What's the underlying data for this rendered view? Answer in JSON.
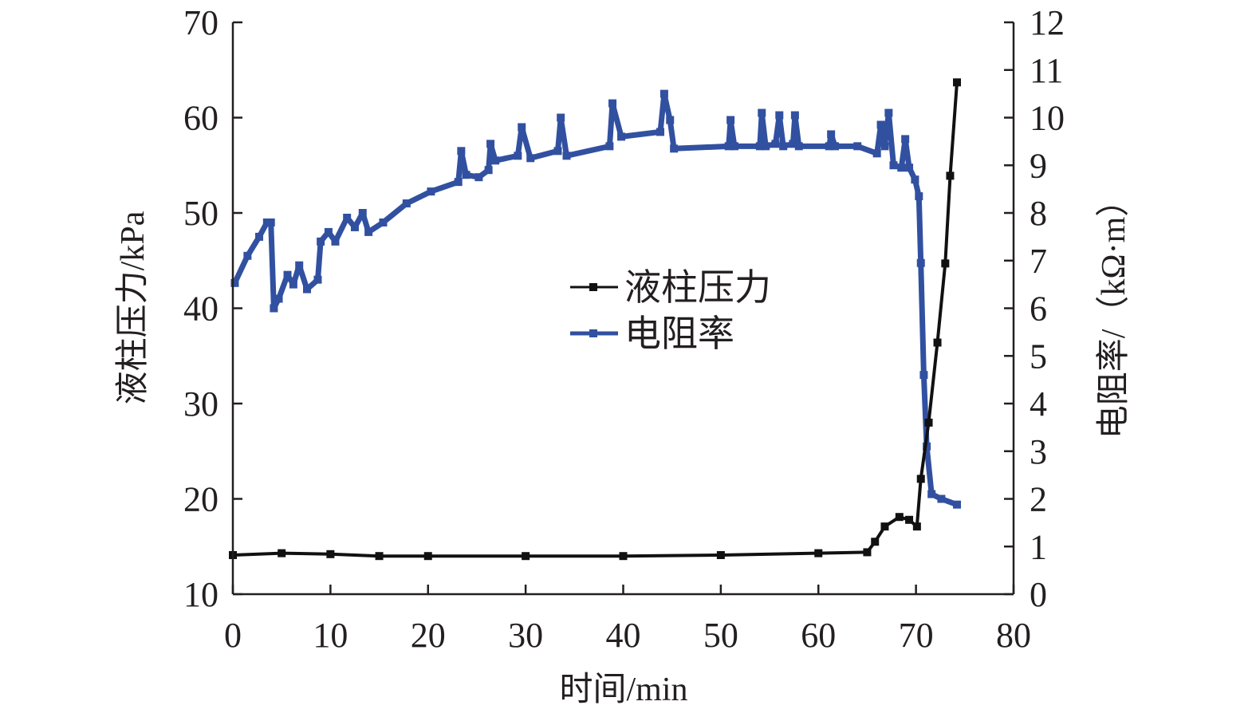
{
  "chart_data": {
    "type": "line",
    "title": "",
    "xlabel": "时间/min",
    "ylabel_left": "液柱压力/kPa",
    "ylabel_right": "电阻率/（kΩ·m）",
    "xlim": [
      0,
      80
    ],
    "ylim_left": [
      10,
      70
    ],
    "ylim_right": [
      0,
      12
    ],
    "x_ticks": [
      "0",
      "10",
      "20",
      "30",
      "40",
      "50",
      "60",
      "70",
      "80"
    ],
    "y_left_ticks": [
      "10",
      "20",
      "30",
      "40",
      "50",
      "60",
      "70"
    ],
    "y_right_ticks": [
      "0",
      "1",
      "2",
      "3",
      "4",
      "5",
      "6",
      "7",
      "8",
      "9",
      "10",
      "11",
      "12"
    ],
    "grid": false,
    "legend_position": "center",
    "colors": {
      "pressure": "#111111",
      "resistivity": "#3150a0",
      "axis": "#231f20"
    },
    "series": [
      {
        "name": "液柱压力",
        "axis": "left",
        "x": [
          0,
          5,
          10,
          15,
          20,
          30,
          40,
          50,
          60,
          65,
          65.8,
          66.8,
          68.3,
          69.3,
          70.1,
          70.5,
          71.3,
          72.2,
          73.0,
          73.5,
          74.2
        ],
        "y": [
          14.1,
          14.3,
          14.2,
          14.0,
          14.0,
          14.0,
          14.0,
          14.1,
          14.3,
          14.4,
          15.5,
          17.1,
          18.1,
          17.8,
          17.1,
          22.1,
          28.0,
          36.4,
          44.7,
          53.9,
          63.7
        ]
      },
      {
        "name": "电阻率",
        "axis": "right",
        "x": [
          0.2,
          1.5,
          2.7,
          3.5,
          3.9,
          4.2,
          4.7,
          5.6,
          6.2,
          6.8,
          7.6,
          8.7,
          9.0,
          9.8,
          10.5,
          11.7,
          12.5,
          13.3,
          13.9,
          15.4,
          17.8,
          20.3,
          23.1,
          23.4,
          23.9,
          25.2,
          26.2,
          26.4,
          26.9,
          29.2,
          29.6,
          30.5,
          33.3,
          33.6,
          34.2,
          38.6,
          38.9,
          39.8,
          43.8,
          44.2,
          44.8,
          45.2,
          50.8,
          51.0,
          51.4,
          54.0,
          54.2,
          54.6,
          55.6,
          56.0,
          56.4,
          57.4,
          57.6,
          58.0,
          61.1,
          61.3,
          61.7,
          64.0,
          66.0,
          66.4,
          66.8,
          67.2,
          67.7,
          68.5,
          68.9,
          69.3,
          69.9,
          70.3,
          70.5,
          70.8,
          71.1,
          71.6,
          72.6,
          74.2
        ],
        "y": [
          6.53,
          7.1,
          7.5,
          7.8,
          7.8,
          6.0,
          6.2,
          6.7,
          6.5,
          6.9,
          6.4,
          6.6,
          7.4,
          7.6,
          7.4,
          7.9,
          7.7,
          8.0,
          7.6,
          7.8,
          8.2,
          8.45,
          8.65,
          9.3,
          8.8,
          8.75,
          8.9,
          9.45,
          9.1,
          9.2,
          9.8,
          9.15,
          9.3,
          10.0,
          9.2,
          9.4,
          10.3,
          9.6,
          9.7,
          10.5,
          9.95,
          9.35,
          9.4,
          9.95,
          9.4,
          9.4,
          10.1,
          9.4,
          9.45,
          10.05,
          9.4,
          9.45,
          10.05,
          9.4,
          9.4,
          9.65,
          9.4,
          9.4,
          9.25,
          9.85,
          9.4,
          10.1,
          9.0,
          8.95,
          9.55,
          8.95,
          8.7,
          8.35,
          6.95,
          4.6,
          3.1,
          2.1,
          2.0,
          1.88
        ]
      }
    ]
  }
}
